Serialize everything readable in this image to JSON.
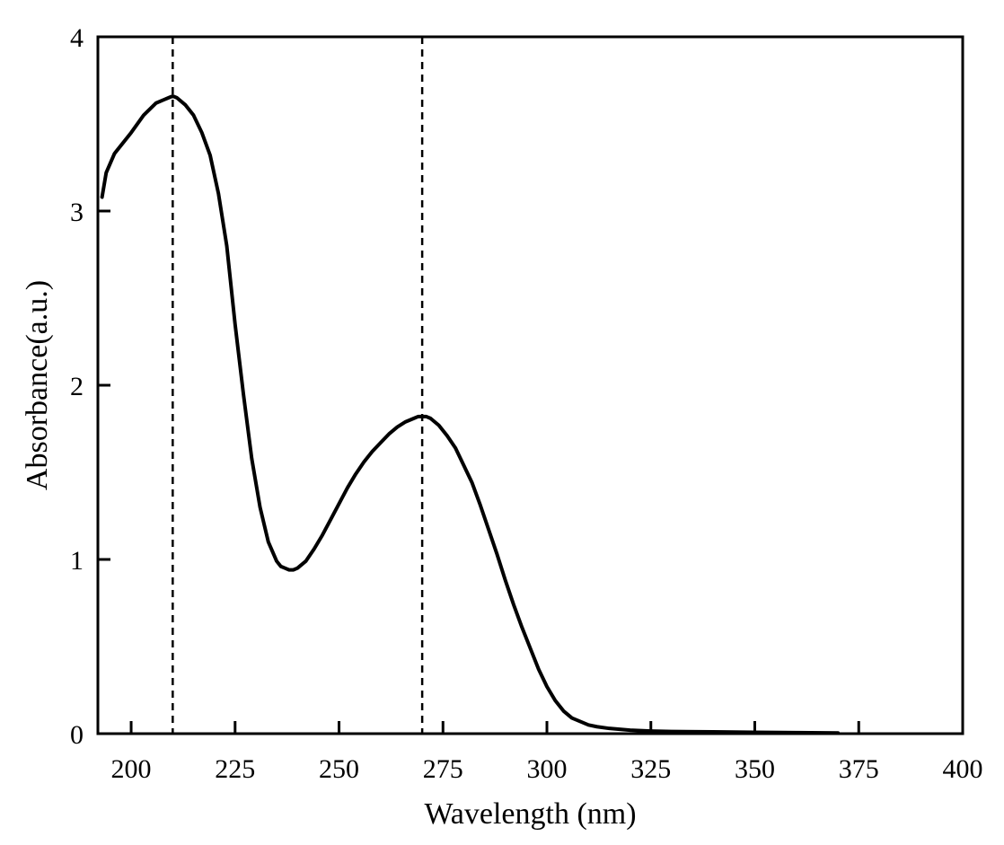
{
  "chart_data": {
    "type": "line",
    "title": "",
    "xlabel": "Wavelength (nm)",
    "ylabel": "Absorbance(a.u.)",
    "xlim": [
      192,
      400
    ],
    "ylim": [
      0,
      4
    ],
    "x_ticks": [
      200,
      225,
      250,
      275,
      300,
      325,
      350,
      375,
      400
    ],
    "y_ticks": [
      0,
      1,
      2,
      3,
      4
    ],
    "x_tick_labels": [
      "200",
      "225",
      "250",
      "275",
      "300",
      "325",
      "350",
      "375",
      "400"
    ],
    "y_tick_labels": [
      "0",
      "1",
      "2",
      "3",
      "4"
    ],
    "grid": false,
    "legend": "none",
    "line_color": "#000000",
    "reference_lines": [
      {
        "axis": "x",
        "value": 210,
        "style": "dashed"
      },
      {
        "axis": "x",
        "value": 270,
        "style": "dashed"
      }
    ],
    "series": [
      {
        "x": [
          193,
          194,
          196,
          200,
          203,
          206,
          208,
          209,
          210,
          211,
          213,
          215,
          217,
          219,
          221,
          223,
          225,
          227,
          229,
          231,
          233,
          235,
          236,
          237,
          238,
          239,
          240,
          242,
          244,
          246,
          248,
          250,
          252,
          254,
          256,
          258,
          260,
          262,
          264,
          266,
          268,
          269,
          270,
          271,
          272,
          274,
          276,
          278,
          280,
          282,
          284,
          286,
          288,
          290,
          292,
          294,
          296,
          298,
          300,
          302,
          304,
          306,
          308,
          310,
          312,
          315,
          320,
          325,
          330,
          340,
          350,
          360,
          370
        ],
        "y": [
          3.08,
          3.22,
          3.33,
          3.45,
          3.55,
          3.62,
          3.64,
          3.65,
          3.66,
          3.65,
          3.61,
          3.55,
          3.45,
          3.32,
          3.1,
          2.8,
          2.35,
          1.95,
          1.58,
          1.3,
          1.1,
          0.99,
          0.96,
          0.95,
          0.94,
          0.94,
          0.95,
          0.99,
          1.06,
          1.14,
          1.23,
          1.32,
          1.41,
          1.49,
          1.56,
          1.62,
          1.67,
          1.72,
          1.76,
          1.79,
          1.81,
          1.82,
          1.82,
          1.82,
          1.81,
          1.77,
          1.71,
          1.64,
          1.54,
          1.44,
          1.31,
          1.17,
          1.03,
          0.88,
          0.74,
          0.61,
          0.49,
          0.37,
          0.27,
          0.19,
          0.13,
          0.09,
          0.07,
          0.05,
          0.04,
          0.03,
          0.02,
          0.015,
          0.012,
          0.01,
          0.008,
          0.006,
          0.004
        ]
      }
    ]
  }
}
